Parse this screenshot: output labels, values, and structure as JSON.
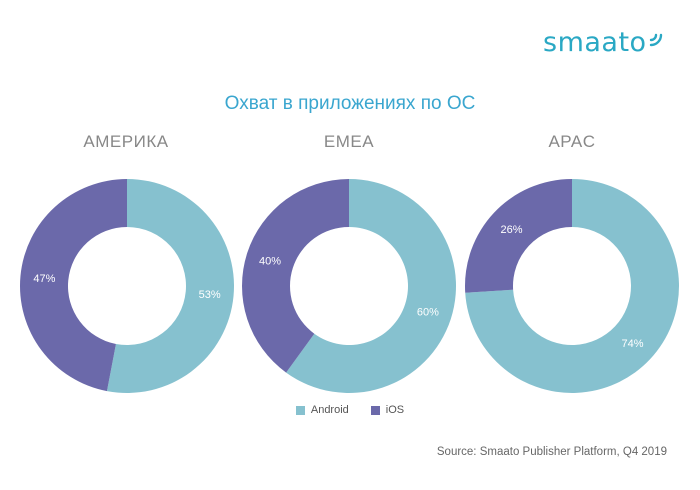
{
  "brand": {
    "name": "smaato",
    "color": "#2aa8c4",
    "icon": "signal-waves-icon"
  },
  "title": "Охват в приложениях по ОС",
  "source": "Source: Smaato Publisher Platform, Q4 2019",
  "colors": {
    "title": "#3aa6cf",
    "region_label": "#888888",
    "android": "#86c1cf",
    "ios": "#6b69aa"
  },
  "chart_data": [
    {
      "type": "pie",
      "title": "АМЕРИКА",
      "series": [
        {
          "name": "Android",
          "value": 53,
          "label": "53%"
        },
        {
          "name": "iOS",
          "value": 47,
          "label": "47%"
        }
      ]
    },
    {
      "type": "pie",
      "title": "EMEA",
      "series": [
        {
          "name": "Android",
          "value": 60,
          "label": "60%"
        },
        {
          "name": "iOS",
          "value": 40,
          "label": "40%"
        }
      ]
    },
    {
      "type": "pie",
      "title": "APAC",
      "series": [
        {
          "name": "Android",
          "value": 74,
          "label": "74%"
        },
        {
          "name": "iOS",
          "value": 26,
          "label": "26%"
        }
      ]
    }
  ],
  "legend": {
    "placement": "bottom-center",
    "items": [
      {
        "label": "Android",
        "color": "#86c1cf"
      },
      {
        "label": "iOS",
        "color": "#6b69aa"
      }
    ]
  }
}
